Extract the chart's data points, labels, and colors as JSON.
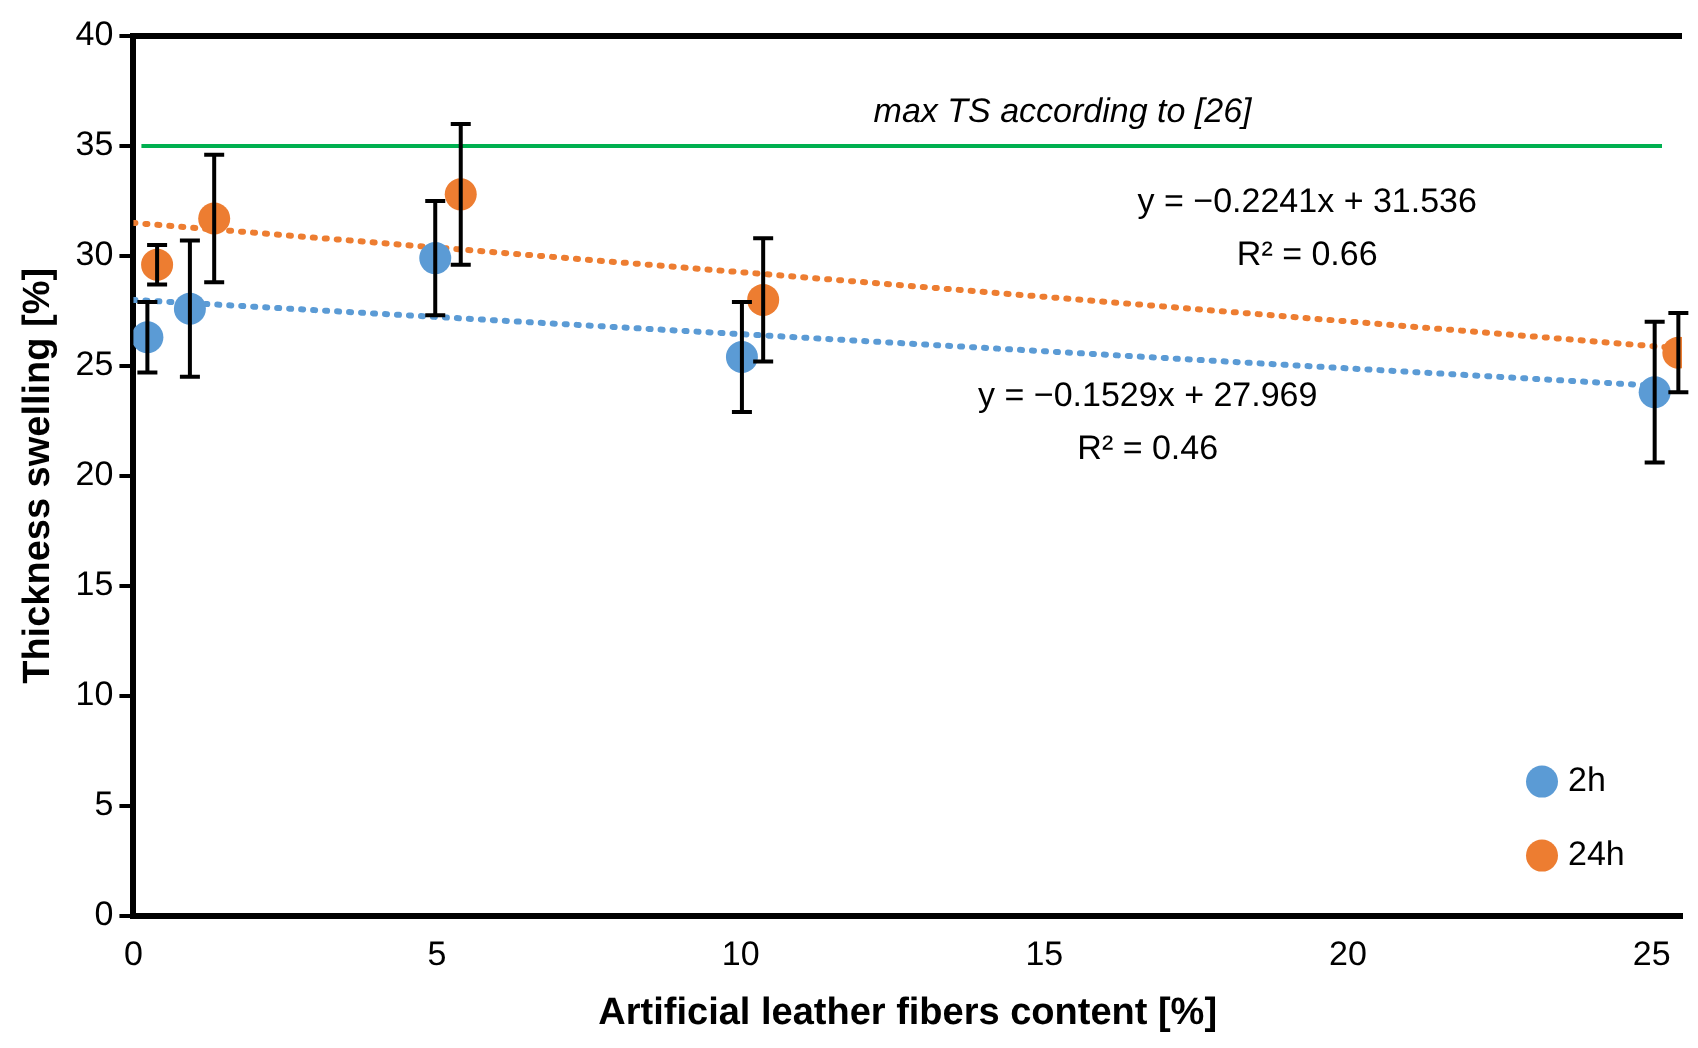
{
  "chart_data": {
    "type": "scatter",
    "xlabel": "Artificial leather fibers content [%]",
    "ylabel": "Thickness swelling [%]",
    "xlim": [
      0,
      25.5
    ],
    "xticks": [
      0,
      5,
      10,
      15,
      20,
      25
    ],
    "ylim": [
      0,
      40
    ],
    "yticks": [
      0,
      5,
      10,
      15,
      20,
      25,
      30,
      35,
      40
    ],
    "grid": false,
    "legend": "bottom right",
    "marker": "circle",
    "series": [
      {
        "name": "2h",
        "color": "#5b9bd5",
        "x": [
          0.23,
          0.93,
          4.97,
          10.02,
          25.05
        ],
        "values": [
          26.3,
          27.6,
          29.9,
          25.4,
          23.8
        ],
        "errors": [
          1.6,
          3.1,
          2.6,
          2.5,
          3.2
        ]
      },
      {
        "name": "24h",
        "color": "#ed7d31",
        "x": [
          0.39,
          1.33,
          5.39,
          10.37,
          25.44
        ],
        "values": [
          29.6,
          31.7,
          32.8,
          28.0,
          25.6
        ],
        "errors": [
          0.9,
          2.9,
          3.2,
          2.8,
          1.8
        ]
      },
      {
        "type": "line",
        "color": "#5b9bd5",
        "x": [
          0,
          25.05
        ],
        "values": [
          28.0,
          24.1
        ],
        "line_style": "dotted",
        "marker": "none"
      },
      {
        "type": "line",
        "color": "#ed7d31",
        "x": [
          0,
          25.44
        ],
        "values": [
          31.5,
          25.8
        ],
        "line_style": "dotted",
        "marker": "none"
      }
    ],
    "ref_lines": [
      {
        "axis": "y",
        "value": 35,
        "label": "max TS according to [26]",
        "color": "#00b050"
      }
    ],
    "annotations": [
      "y = −0.2241x + 31.536",
      "R² = 0.66",
      "y = −0.1529x + 27.969",
      "R² = 0.46"
    ]
  }
}
